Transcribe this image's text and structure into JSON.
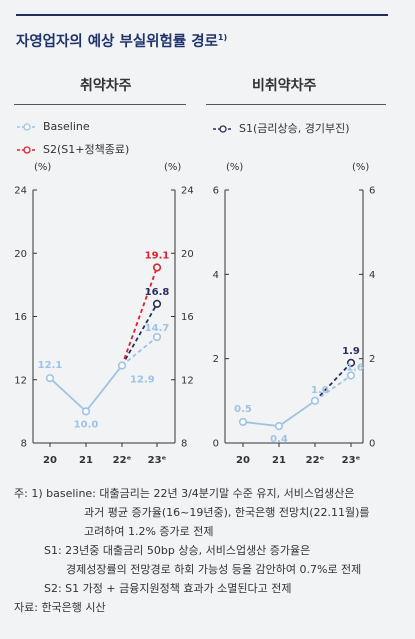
{
  "title": "자영업자의 예상 부실위험률 경로",
  "title_note": "1)",
  "panels": {
    "left_title": "취약차주",
    "right_title": "비취약차주"
  },
  "legend": {
    "baseline": "Baseline",
    "s2": "S2(S1+정책종료)",
    "s1": "S1(금리상승, 경기부진)"
  },
  "colors": {
    "baseline": "#9ec3e6",
    "s1": "#2b2f5c",
    "s2": "#e0202b"
  },
  "chart_data": [
    {
      "type": "line",
      "title": "취약차주",
      "categories": [
        "20",
        "21",
        "22ᵉ",
        "23ᵉ"
      ],
      "ylim": [
        8,
        24
      ],
      "yticks": [
        "8",
        "12",
        "16",
        "20",
        "24"
      ],
      "unit_left": "(%)",
      "unit_right": "(%)",
      "series": [
        {
          "name": "Baseline",
          "values": [
            12.1,
            10.0,
            12.9,
            14.7
          ],
          "labels": [
            "12.1",
            "10.0",
            "12.9",
            "14.7"
          ]
        },
        {
          "name": "S1(금리상승, 경기부진)",
          "values": [
            null,
            null,
            12.9,
            16.8
          ],
          "labels": [
            "",
            "",
            "",
            "16.8"
          ]
        },
        {
          "name": "S2(S1+정책종료)",
          "values": [
            null,
            null,
            12.9,
            19.1
          ],
          "labels": [
            "",
            "",
            "",
            "19.1"
          ]
        }
      ]
    },
    {
      "type": "line",
      "title": "비취약차주",
      "categories": [
        "20",
        "21",
        "22ᵉ",
        "23ᵉ"
      ],
      "ylim": [
        0,
        6
      ],
      "yticks": [
        "0",
        "2",
        "4",
        "6"
      ],
      "unit_left": "(%)",
      "unit_right": "(%)",
      "series": [
        {
          "name": "Baseline",
          "values": [
            0.5,
            0.4,
            1.0,
            1.6
          ],
          "labels": [
            "0.5",
            "0.4",
            "1.0",
            "1.6"
          ]
        },
        {
          "name": "S1(금리상승, 경기부진)",
          "values": [
            null,
            null,
            1.0,
            1.9
          ],
          "labels": [
            "",
            "",
            "",
            "1.9"
          ]
        }
      ]
    }
  ],
  "notes": [
    "주: 1) baseline: 대출금리는 22년 3/4분기말 수준 유지, 서비스업생산은",
    "과거 평균 증가율(16~19년중), 한국은행 전망치(22.11월)를",
    "고려하여 1.2% 증가로 전제",
    "S1: 23년중 대출금리 50bp 상승, 서비스업생산 증가율은",
    "경제성장률의 전망경로 하회 가능성 등을 감안하여 0.7%로 전제",
    "S2: S1 가정 + 금융지원정책 효과가 소멸된다고 전제",
    "자료: 한국은행 시산"
  ]
}
